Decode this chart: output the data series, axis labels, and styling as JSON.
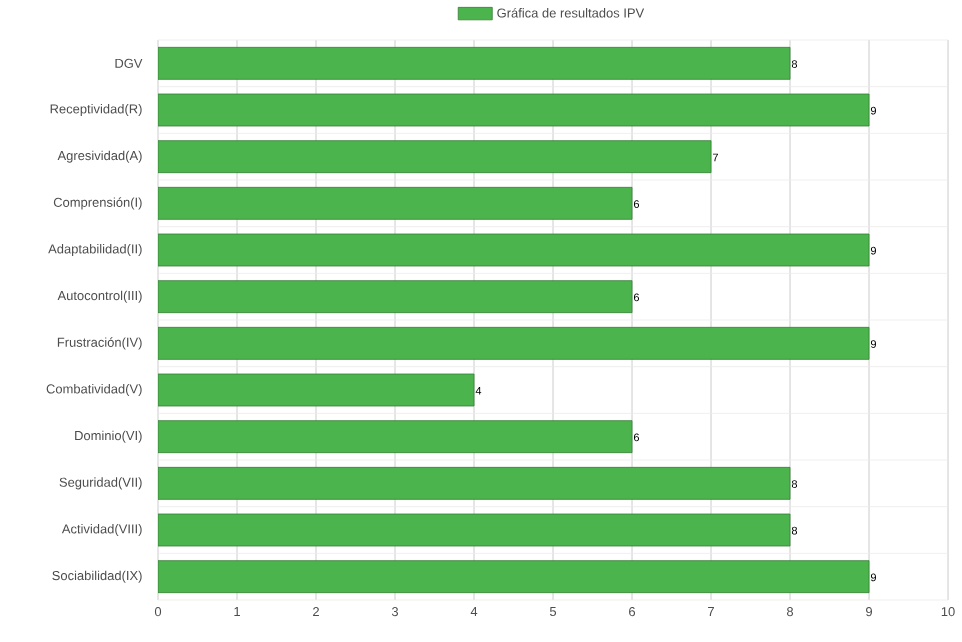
{
  "chart_data": {
    "type": "bar",
    "orientation": "horizontal",
    "categories": [
      "DGV",
      "Receptividad(R)",
      "Agresividad(A)",
      "Comprensión(I)",
      "Adaptabilidad(II)",
      "Autocontrol(III)",
      "Frustración(IV)",
      "Combatividad(V)",
      "Dominio(VI)",
      "Seguridad(VII)",
      "Actividad(VIII)",
      "Sociabilidad(IX)"
    ],
    "series": [
      {
        "name": "Gráfica de resultados IPV",
        "color": "#4cb44c",
        "values": [
          8,
          9,
          7,
          6,
          9,
          6,
          9,
          4,
          6,
          8,
          8,
          9
        ]
      }
    ],
    "xlim": [
      0,
      10
    ],
    "xticks": [
      0,
      1,
      2,
      3,
      4,
      5,
      6,
      7,
      8,
      9,
      10
    ],
    "grid": true,
    "legend": "top",
    "data_labels": true
  }
}
